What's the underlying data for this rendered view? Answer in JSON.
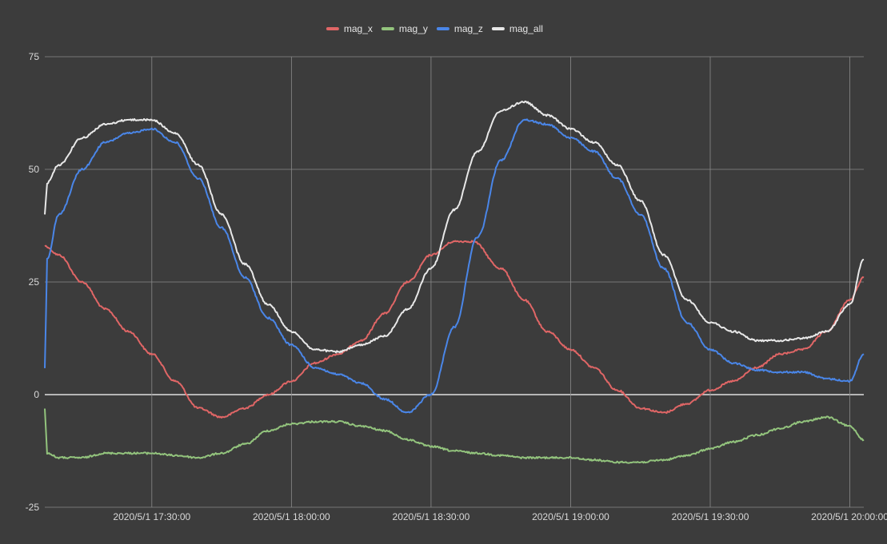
{
  "chart_data": {
    "type": "line",
    "title": "",
    "xlabel": "",
    "ylabel": "",
    "ylim": [
      -25,
      75
    ],
    "xlim": [
      "2020-05-01T17:07:00",
      "2020-05-01T20:03:00"
    ],
    "y_ticks": [
      75,
      50,
      25,
      0,
      -25
    ],
    "x_ticks": [
      {
        "value": "2020-05-01T17:30:00",
        "label": "2020/5/1  17:30:00"
      },
      {
        "value": "2020-05-01T18:00:00",
        "label": "2020/5/1  18:00:00"
      },
      {
        "value": "2020-05-01T18:30:00",
        "label": "2020/5/1  18:30:00"
      },
      {
        "value": "2020-05-01T19:00:00",
        "label": "2020/5/1  19:00:00"
      },
      {
        "value": "2020-05-01T19:30:00",
        "label": "2020/5/1  19:30:00"
      },
      {
        "value": "2020-05-01T20:00:00",
        "label": "2020/5/1  20:00:00"
      }
    ],
    "grid": true,
    "legend_position": "top",
    "colors": {
      "background": "#3c3c3c",
      "grid": "#8a8a8a",
      "zero_line": "#ffffff"
    },
    "series": [
      {
        "name": "mag_x",
        "color": "#e06666",
        "x": [
          "2020-05-01T17:07:00",
          "2020-05-01T17:10:00",
          "2020-05-01T17:15:00",
          "2020-05-01T17:20:00",
          "2020-05-01T17:25:00",
          "2020-05-01T17:30:00",
          "2020-05-01T17:35:00",
          "2020-05-01T17:40:00",
          "2020-05-01T17:45:00",
          "2020-05-01T17:50:00",
          "2020-05-01T17:55:00",
          "2020-05-01T18:00:00",
          "2020-05-01T18:05:00",
          "2020-05-01T18:10:00",
          "2020-05-01T18:15:00",
          "2020-05-01T18:20:00",
          "2020-05-01T18:25:00",
          "2020-05-01T18:30:00",
          "2020-05-01T18:35:00",
          "2020-05-01T18:39:00",
          "2020-05-01T18:45:00",
          "2020-05-01T18:50:00",
          "2020-05-01T18:55:00",
          "2020-05-01T19:00:00",
          "2020-05-01T19:05:00",
          "2020-05-01T19:10:00",
          "2020-05-01T19:15:00",
          "2020-05-01T19:20:00",
          "2020-05-01T19:25:00",
          "2020-05-01T19:30:00",
          "2020-05-01T19:35:00",
          "2020-05-01T19:40:00",
          "2020-05-01T19:45:00",
          "2020-05-01T19:50:00",
          "2020-05-01T19:55:00",
          "2020-05-01T20:00:00",
          "2020-05-01T20:03:00"
        ],
        "y": [
          33,
          31,
          25,
          19,
          14,
          9,
          3,
          -3,
          -5,
          -3,
          0,
          3,
          7,
          9,
          12,
          18,
          25,
          31,
          34,
          34,
          28,
          21,
          14,
          10,
          6,
          1,
          -3,
          -4,
          -2,
          1,
          3,
          6,
          9,
          10,
          14,
          21,
          26
        ]
      },
      {
        "name": "mag_y",
        "color": "#93c47d",
        "x": [
          "2020-05-01T17:07:00",
          "2020-05-01T17:07:30",
          "2020-05-01T17:10:00",
          "2020-05-01T17:15:00",
          "2020-05-01T17:20:00",
          "2020-05-01T17:25:00",
          "2020-05-01T17:30:00",
          "2020-05-01T17:35:00",
          "2020-05-01T17:40:00",
          "2020-05-01T17:45:00",
          "2020-05-01T17:50:00",
          "2020-05-01T17:55:00",
          "2020-05-01T18:00:00",
          "2020-05-01T18:05:00",
          "2020-05-01T18:10:00",
          "2020-05-01T18:15:00",
          "2020-05-01T18:20:00",
          "2020-05-01T18:25:00",
          "2020-05-01T18:30:00",
          "2020-05-01T18:35:00",
          "2020-05-01T18:40:00",
          "2020-05-01T18:45:00",
          "2020-05-01T18:50:00",
          "2020-05-01T18:55:00",
          "2020-05-01T19:00:00",
          "2020-05-01T19:05:00",
          "2020-05-01T19:10:00",
          "2020-05-01T19:15:00",
          "2020-05-01T19:20:00",
          "2020-05-01T19:25:00",
          "2020-05-01T19:30:00",
          "2020-05-01T19:35:00",
          "2020-05-01T19:40:00",
          "2020-05-01T19:45:00",
          "2020-05-01T19:50:00",
          "2020-05-01T19:55:00",
          "2020-05-01T20:00:00",
          "2020-05-01T20:03:00"
        ],
        "y": [
          -3,
          -13,
          -14,
          -14,
          -13,
          -13,
          -13,
          -13.5,
          -14,
          -13,
          -11,
          -8,
          -6.5,
          -6,
          -6,
          -7,
          -8,
          -10,
          -11.5,
          -12.5,
          -13,
          -13.5,
          -14,
          -14,
          -14,
          -14.5,
          -15,
          -15,
          -14.5,
          -13.5,
          -12,
          -10.5,
          -9,
          -7.5,
          -6,
          -5,
          -7,
          -10
        ]
      },
      {
        "name": "mag_z",
        "color": "#4a86e8",
        "x": [
          "2020-05-01T17:07:00",
          "2020-05-01T17:07:30",
          "2020-05-01T17:10:00",
          "2020-05-01T17:15:00",
          "2020-05-01T17:20:00",
          "2020-05-01T17:25:00",
          "2020-05-01T17:30:00",
          "2020-05-01T17:35:00",
          "2020-05-01T17:40:00",
          "2020-05-01T17:45:00",
          "2020-05-01T17:50:00",
          "2020-05-01T17:55:00",
          "2020-05-01T18:00:00",
          "2020-05-01T18:05:00",
          "2020-05-01T18:10:00",
          "2020-05-01T18:15:00",
          "2020-05-01T18:20:00",
          "2020-05-01T18:25:00",
          "2020-05-01T18:30:00",
          "2020-05-01T18:35:00",
          "2020-05-01T18:40:00",
          "2020-05-01T18:45:00",
          "2020-05-01T18:50:00",
          "2020-05-01T18:55:00",
          "2020-05-01T19:00:00",
          "2020-05-01T19:05:00",
          "2020-05-01T19:10:00",
          "2020-05-01T19:15:00",
          "2020-05-01T19:20:00",
          "2020-05-01T19:25:00",
          "2020-05-01T19:30:00",
          "2020-05-01T19:35:00",
          "2020-05-01T19:40:00",
          "2020-05-01T19:45:00",
          "2020-05-01T19:50:00",
          "2020-05-01T19:55:00",
          "2020-05-01T20:00:00",
          "2020-05-01T20:03:00"
        ],
        "y": [
          6,
          30,
          40,
          50,
          56,
          58,
          59,
          56,
          48,
          37,
          26,
          17,
          11,
          6,
          4.5,
          2.5,
          -1,
          -4,
          0,
          15,
          35,
          52,
          61,
          60,
          57,
          54,
          48,
          40,
          28,
          16,
          10,
          7,
          5.5,
          5,
          5,
          3.5,
          3,
          9
        ]
      },
      {
        "name": "mag_all",
        "color": "#e8e8e8",
        "x": [
          "2020-05-01T17:07:00",
          "2020-05-01T17:07:30",
          "2020-05-01T17:10:00",
          "2020-05-01T17:15:00",
          "2020-05-01T17:20:00",
          "2020-05-01T17:25:00",
          "2020-05-01T17:30:00",
          "2020-05-01T17:35:00",
          "2020-05-01T17:40:00",
          "2020-05-01T17:45:00",
          "2020-05-01T17:50:00",
          "2020-05-01T17:55:00",
          "2020-05-01T18:00:00",
          "2020-05-01T18:05:00",
          "2020-05-01T18:10:00",
          "2020-05-01T18:15:00",
          "2020-05-01T18:20:00",
          "2020-05-01T18:25:00",
          "2020-05-01T18:30:00",
          "2020-05-01T18:35:00",
          "2020-05-01T18:40:00",
          "2020-05-01T18:45:00",
          "2020-05-01T18:50:00",
          "2020-05-01T18:55:00",
          "2020-05-01T19:00:00",
          "2020-05-01T19:05:00",
          "2020-05-01T19:10:00",
          "2020-05-01T19:15:00",
          "2020-05-01T19:20:00",
          "2020-05-01T19:25:00",
          "2020-05-01T19:30:00",
          "2020-05-01T19:35:00",
          "2020-05-01T19:40:00",
          "2020-05-01T19:45:00",
          "2020-05-01T19:50:00",
          "2020-05-01T19:55:00",
          "2020-05-01T20:00:00",
          "2020-05-01T20:03:00"
        ],
        "y": [
          40,
          47,
          51,
          57,
          60,
          61,
          61,
          58,
          51,
          40,
          29,
          20,
          14,
          10,
          9.5,
          11,
          13,
          19,
          28,
          41,
          54,
          63,
          65,
          62,
          59,
          56,
          51,
          43,
          31,
          21,
          16,
          14,
          12,
          12,
          12.5,
          14,
          20,
          30
        ]
      }
    ]
  }
}
